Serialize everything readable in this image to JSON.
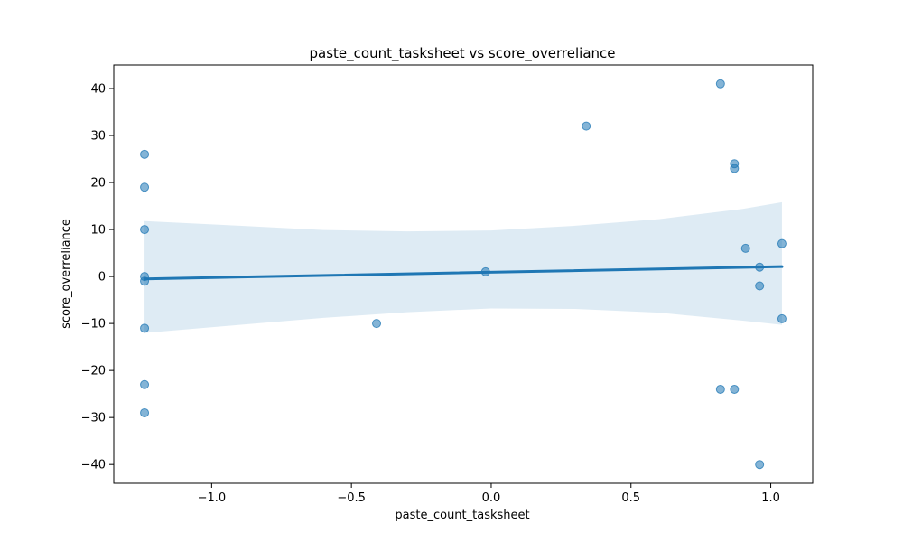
{
  "chart_data": {
    "type": "scatter",
    "title": "paste_count_tasksheet vs score_overreliance",
    "xlabel": "paste_count_tasksheet",
    "ylabel": "score_overreliance",
    "xlim": [
      -1.35,
      1.15
    ],
    "ylim": [
      -44,
      45
    ],
    "x_ticks": [
      -1.0,
      -0.5,
      0.0,
      0.5,
      1.0
    ],
    "x_tick_labels": [
      "−1.0",
      "−0.5",
      "0.0",
      "0.5",
      "1.0"
    ],
    "y_ticks": [
      -40,
      -30,
      -20,
      -10,
      0,
      10,
      20,
      30,
      40
    ],
    "y_tick_labels": [
      "−40",
      "−30",
      "−20",
      "−10",
      "0",
      "10",
      "20",
      "30",
      "40"
    ],
    "grid": false,
    "legend": "none",
    "point_color": "#1f77b4",
    "line_color": "#1f77b4",
    "band_color": "#1f77b4",
    "points": [
      {
        "x": -1.24,
        "y": 26
      },
      {
        "x": -1.24,
        "y": 19
      },
      {
        "x": -1.24,
        "y": 10
      },
      {
        "x": -1.24,
        "y": 0
      },
      {
        "x": -1.24,
        "y": -1
      },
      {
        "x": -1.24,
        "y": -11
      },
      {
        "x": -1.24,
        "y": -23
      },
      {
        "x": -1.24,
        "y": -29
      },
      {
        "x": -0.41,
        "y": -10
      },
      {
        "x": -0.02,
        "y": 1
      },
      {
        "x": 0.34,
        "y": 32
      },
      {
        "x": 0.82,
        "y": 41
      },
      {
        "x": 0.82,
        "y": -24
      },
      {
        "x": 0.87,
        "y": 24
      },
      {
        "x": 0.87,
        "y": 23
      },
      {
        "x": 0.87,
        "y": -24
      },
      {
        "x": 0.91,
        "y": 6
      },
      {
        "x": 0.96,
        "y": 2
      },
      {
        "x": 0.96,
        "y": -2
      },
      {
        "x": 0.96,
        "y": -40
      },
      {
        "x": 1.04,
        "y": 7
      },
      {
        "x": 1.04,
        "y": -9
      }
    ],
    "regression_line": [
      {
        "x": -1.24,
        "y": -0.5
      },
      {
        "x": 1.04,
        "y": 2.1
      }
    ],
    "confidence_band": {
      "x": [
        -1.24,
        -0.9,
        -0.6,
        -0.3,
        0.0,
        0.3,
        0.6,
        0.9,
        1.04
      ],
      "upper": [
        11.8,
        10.8,
        9.9,
        9.6,
        9.8,
        10.8,
        12.2,
        14.4,
        15.8
      ],
      "lower": [
        -12.0,
        -10.3,
        -8.8,
        -7.6,
        -6.8,
        -6.9,
        -7.7,
        -9.4,
        -10.3
      ]
    }
  }
}
